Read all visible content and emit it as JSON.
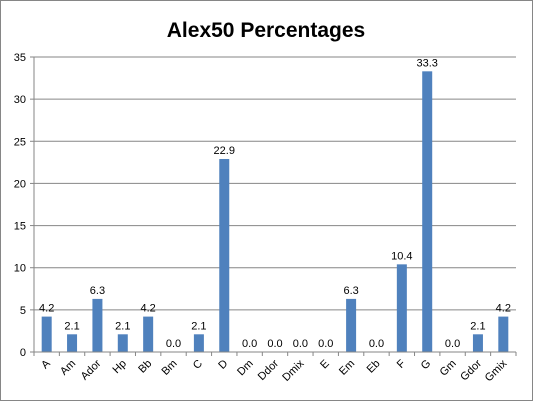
{
  "chart_data": {
    "type": "bar",
    "title": "Alex50 Percentages",
    "xlabel": "",
    "ylabel": "",
    "ylim": [
      0,
      35
    ],
    "yticks": [
      0,
      5,
      10,
      15,
      20,
      25,
      30,
      35
    ],
    "grid": true,
    "legend": "none",
    "bar_color": "#4F81BD",
    "grid_color": "#868686",
    "categories": [
      "A",
      "Am",
      "Ador",
      "Hp",
      "Bb",
      "Bm",
      "C",
      "D",
      "Dm",
      "Ddor",
      "Dmix",
      "E",
      "Em",
      "Eb",
      "F",
      "G",
      "Gm",
      "Gdor",
      "Gmix"
    ],
    "values": [
      4.2,
      2.1,
      6.3,
      2.1,
      4.2,
      0.0,
      2.1,
      22.9,
      0.0,
      0.0,
      0.0,
      0.0,
      6.3,
      0.0,
      10.4,
      33.3,
      0.0,
      2.1,
      4.2
    ],
    "data_labels": [
      "4.2",
      "2.1",
      "6.3",
      "2.1",
      "4.2",
      "0.0",
      "2.1",
      "22.9",
      "0.0",
      "0.0",
      "0.0",
      "0.0",
      "6.3",
      "0.0",
      "10.4",
      "33.3",
      "0.0",
      "2.1",
      "4.2"
    ]
  }
}
